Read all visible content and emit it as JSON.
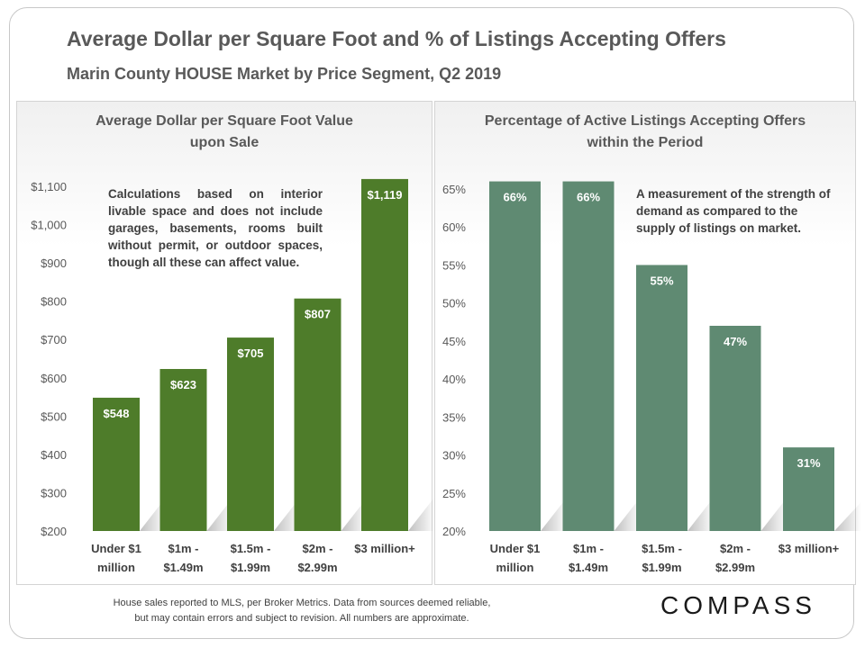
{
  "header": {
    "title": "Average Dollar per Square Foot and % of Listings Accepting Offers",
    "subtitle": "Marin County HOUSE Market by Price Segment, Q2 2019"
  },
  "left_note": "Calculations based on interior livable space and does not include garages, basements, rooms built without permit, or outdoor spaces, though all these can affect value.",
  "right_note": "A measurement of the strength of demand as compared to the supply of listings on market.",
  "footer": {
    "line1": "House sales reported to MLS, per Broker Metrics. Data from sources deemed reliable,",
    "line2": "but may contain errors and subject to revision. All numbers are approximate."
  },
  "logo": "COMPASS",
  "colors": {
    "left_bar": "#4e7c2a",
    "right_bar": "#5f8a72"
  },
  "chart_data": [
    {
      "type": "bar",
      "title_lines": [
        "Average Dollar per Square Foot Value",
        "upon Sale"
      ],
      "categories": [
        [
          "Under $1",
          "million"
        ],
        [
          "$1m -",
          "$1.49m"
        ],
        [
          "$1.5m -",
          "$1.99m"
        ],
        [
          "$2m -",
          "$2.99m"
        ],
        [
          "$3 million+"
        ]
      ],
      "values": [
        548,
        623,
        705,
        807,
        1119
      ],
      "data_labels": [
        "$548",
        "$623",
        "$705",
        "$807",
        "$1,119"
      ],
      "ylim": [
        200,
        1100
      ],
      "yticks": [
        200,
        300,
        400,
        500,
        600,
        700,
        800,
        900,
        1000,
        1100
      ],
      "ytick_labels": [
        "$200",
        "$300",
        "$400",
        "$500",
        "$600",
        "$700",
        "$800",
        "$900",
        "$1,000",
        "$1,100"
      ],
      "xlabel": "",
      "ylabel": ""
    },
    {
      "type": "bar",
      "title_lines": [
        "Percentage of Active Listings Accepting Offers",
        "within the Period"
      ],
      "categories": [
        [
          "Under $1",
          "million"
        ],
        [
          "$1m -",
          "$1.49m"
        ],
        [
          "$1.5m -",
          "$1.99m"
        ],
        [
          "$2m -",
          "$2.99m"
        ],
        [
          "$3 million+"
        ]
      ],
      "values": [
        66,
        66,
        55,
        47,
        31
      ],
      "data_labels": [
        "66%",
        "66%",
        "55%",
        "47%",
        "31%"
      ],
      "ylim": [
        20,
        65
      ],
      "yticks": [
        20,
        25,
        30,
        35,
        40,
        45,
        50,
        55,
        60,
        65
      ],
      "ytick_labels": [
        "20%",
        "25%",
        "30%",
        "35%",
        "40%",
        "45%",
        "50%",
        "55%",
        "60%",
        "65%"
      ],
      "xlabel": "",
      "ylabel": ""
    }
  ]
}
